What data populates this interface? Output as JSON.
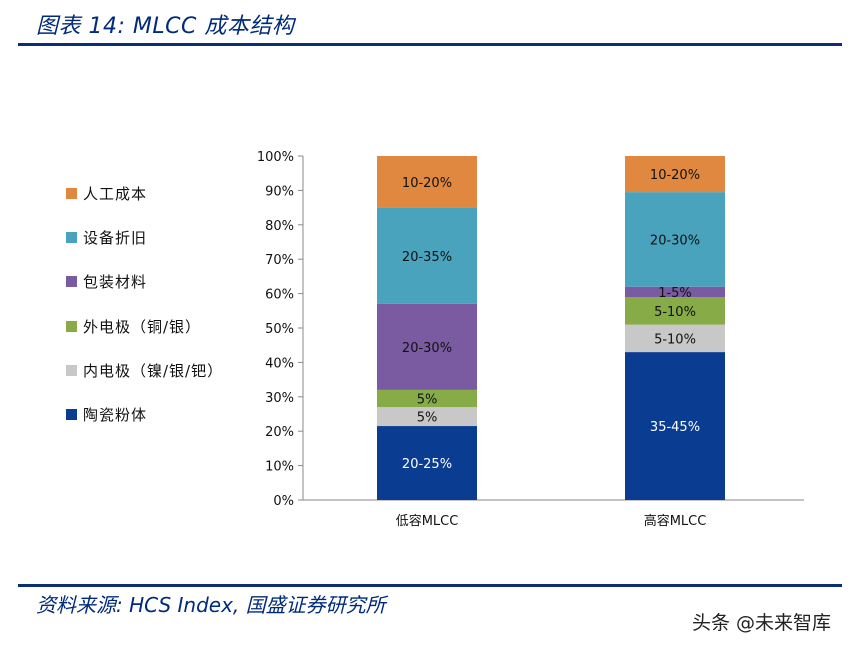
{
  "header": {
    "title": "图表 14:  MLCC 成本结构"
  },
  "footer": {
    "source": "资料来源:  HCS Index,  国盛证券研究所",
    "watermark": "头条 @未来智库"
  },
  "colors": {
    "labor": "#e0883f",
    "depreciation": "#4aa3bd",
    "packaging": "#7a5ba1",
    "external_electrode": "#86ab47",
    "internal_electrode": "#c8c8c8",
    "ceramic_powder": "#0a3d91",
    "axis": "#888888",
    "rule": "#0a2f73"
  },
  "chart_data": {
    "type": "bar",
    "stacked": true,
    "title": "",
    "xlabel": "",
    "ylabel": "",
    "ylim": [
      0,
      100
    ],
    "y_ticks": [
      "0%",
      "10%",
      "20%",
      "30%",
      "40%",
      "50%",
      "60%",
      "70%",
      "80%",
      "90%",
      "100%"
    ],
    "categories": [
      "低容MLCC",
      "高容MLCC"
    ],
    "legend_position": "left",
    "series": [
      {
        "name": "陶瓷粉体",
        "color_key": "ceramic_powder",
        "values": [
          21.5,
          43
        ],
        "labels": [
          "20-25%",
          "35-45%"
        ],
        "label_color": "#ffffff"
      },
      {
        "name": "内电极（镍/银/钯）",
        "color_key": "internal_electrode",
        "values": [
          5.5,
          8
        ],
        "labels": [
          "5%",
          "5-10%"
        ],
        "label_color": "#111111"
      },
      {
        "name": "外电极（铜/银）",
        "color_key": "external_electrode",
        "values": [
          5,
          8
        ],
        "labels": [
          "5%",
          "5-10%"
        ],
        "label_color": "#111111"
      },
      {
        "name": "包装材料",
        "color_key": "packaging",
        "values": [
          25,
          3
        ],
        "labels": [
          "20-30%",
          "1-5%"
        ],
        "label_color": "#111111"
      },
      {
        "name": "设备折旧",
        "color_key": "depreciation",
        "values": [
          28,
          27.5
        ],
        "labels": [
          "20-35%",
          "20-30%"
        ],
        "label_color": "#111111"
      },
      {
        "name": "人工成本",
        "color_key": "labor",
        "values": [
          15,
          10.5
        ],
        "labels": [
          "10-20%",
          "10-20%"
        ],
        "label_color": "#111111"
      }
    ]
  }
}
